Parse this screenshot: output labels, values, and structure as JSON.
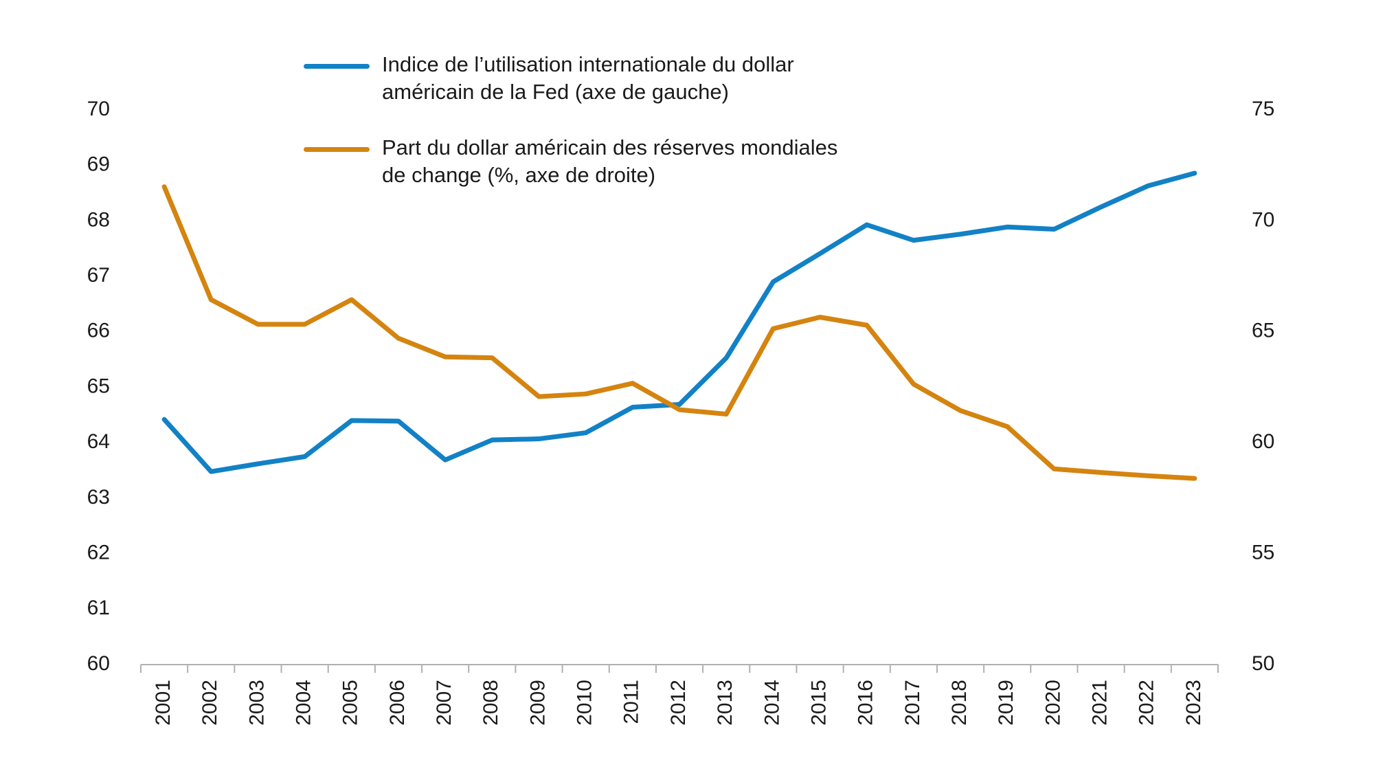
{
  "chart_data": {
    "type": "line",
    "categories": [
      "2001",
      "2002",
      "2003",
      "2004",
      "2005",
      "2006",
      "2007",
      "2008",
      "2009",
      "2010",
      "2011",
      "2012",
      "2013",
      "2014",
      "2015",
      "2016",
      "2017",
      "2018",
      "2019",
      "2020",
      "2021",
      "2022",
      "2023"
    ],
    "series": [
      {
        "name": "Indice de l’utilisation internationale du dollar américain de la Fed (axe de gauche)",
        "color": "#1281c6",
        "values": [
          64.42,
          63.48,
          63.62,
          63.75,
          64.4,
          64.39,
          63.69,
          64.05,
          64.07,
          64.18,
          64.64,
          64.69,
          65.53,
          66.9,
          67.41,
          67.93,
          67.65,
          67.76,
          67.89,
          67.85,
          68.25,
          68.63,
          68.86
        ]
      },
      {
        "name": "Part du dollar américain des réserves mondiales de change (%, axe de droite)",
        "color": "#d4840f",
        "axis": "y2",
        "values": [
          71.54,
          66.45,
          65.34,
          65.34,
          66.45,
          64.71,
          63.87,
          63.83,
          62.08,
          62.2,
          62.68,
          61.49,
          61.29,
          65.14,
          65.66,
          65.3,
          62.64,
          61.45,
          60.73,
          58.82,
          58.66,
          58.51,
          58.39
        ]
      }
    ],
    "ylim": [
      60,
      70
    ],
    "yticks": [
      60,
      61,
      62,
      63,
      64,
      65,
      66,
      67,
      68,
      69,
      70
    ],
    "y2lim": [
      50,
      75
    ],
    "y2ticks": [
      50,
      55,
      60,
      65,
      70,
      75
    ],
    "grid": false
  }
}
